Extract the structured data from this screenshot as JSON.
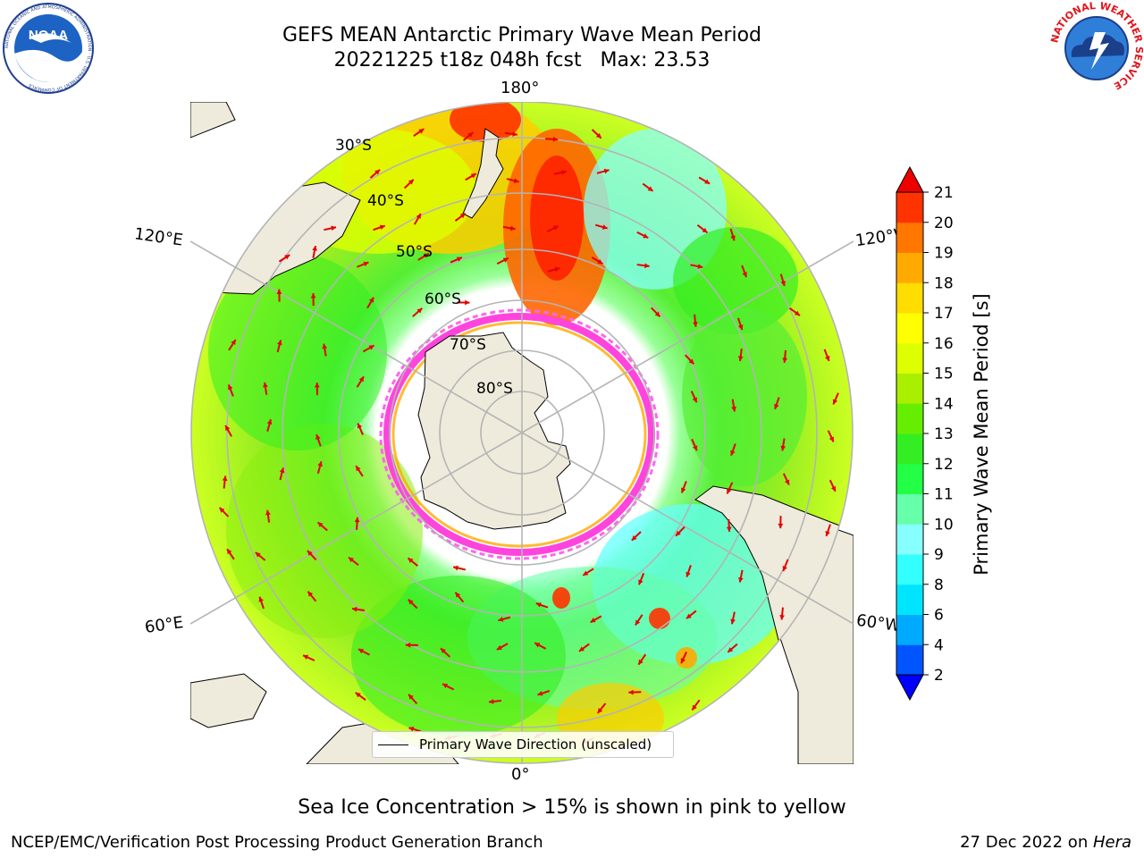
{
  "header": {
    "title_line1": "GEFS MEAN Antarctic Primary Wave Mean Period",
    "title_line2": "20221225 t18z 048h fcst   Max: 23.53"
  },
  "logos": {
    "noaa_text": "NOAA",
    "noaa_ring_text": "NATIONAL OCEANIC AND ATMOSPHERIC ADMINISTRATION · U.S. DEPARTMENT OF COMMERCE",
    "nws_ring_text": "NATIONAL WEATHER SERVICE"
  },
  "map": {
    "projection": "south-polar-stereographic",
    "longitude_labels": {
      "top": "180°",
      "bottom": "0°",
      "upper_left": "120°E",
      "lower_left": "60°E",
      "upper_right": "120°W",
      "lower_right": "60°W"
    },
    "latitude_labels": [
      "30°S",
      "40°S",
      "50°S",
      "60°S",
      "70°S",
      "80°S"
    ],
    "legend_label": "Primary Wave Direction (unscaled)",
    "colors": {
      "land": "#efebdc",
      "grid": "#b4b4b4",
      "arrow": "#e60000",
      "sea_ice": "#ff44dd"
    }
  },
  "colorbar": {
    "label": "Primary Wave Mean Period [s]",
    "ticks": [
      "2",
      "4",
      "6",
      "8",
      "9",
      "10",
      "11",
      "12",
      "13",
      "14",
      "15",
      "16",
      "17",
      "18",
      "19",
      "20",
      "21"
    ],
    "colors": [
      "#0055ff",
      "#00aaff",
      "#00e5ff",
      "#33ffff",
      "#88ffff",
      "#66ffaa",
      "#22ff44",
      "#33ee22",
      "#66ee00",
      "#aaee00",
      "#ddff00",
      "#ffff00",
      "#ffdd00",
      "#ffaa00",
      "#ff7700",
      "#ff3300"
    ],
    "over_color": "#ee0000",
    "under_color": "#0000ff"
  },
  "footer": {
    "caption": "Sea Ice Concentration > 15% is shown in pink to yellow",
    "left": "NCEP/EMC/Verification Post Processing Product Generation Branch",
    "right_date": "27 Dec 2022 on ",
    "right_host": "Hera"
  }
}
